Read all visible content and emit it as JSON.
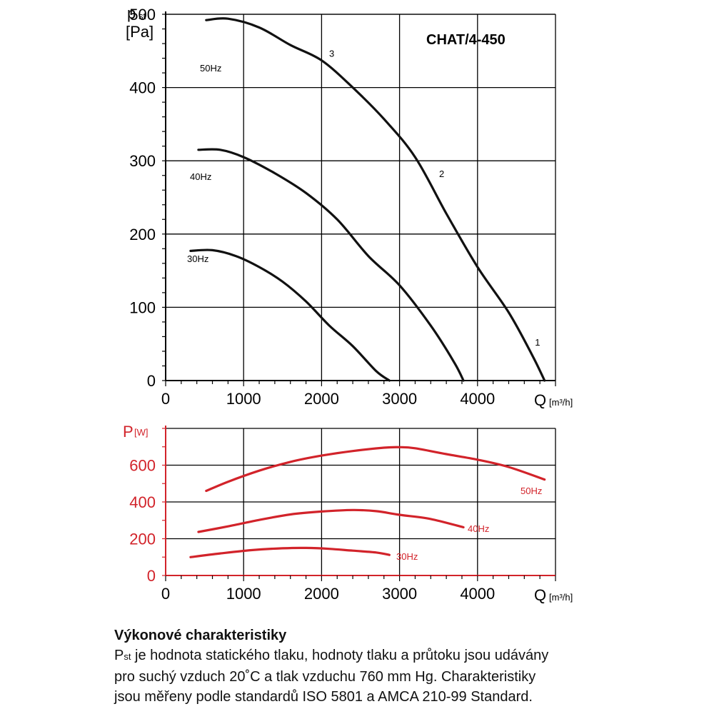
{
  "chart_data": [
    {
      "type": "line",
      "title": "CHAT/4-450",
      "ylabel_symbol": "p",
      "ylabel_sub": "st",
      "yunit": "[Pa]",
      "xlabel": "Q",
      "xunit": "[m³/h]",
      "xlim": [
        0,
        5000
      ],
      "ylim": [
        0,
        500
      ],
      "xticks": [
        0,
        1000,
        2000,
        3000,
        4000
      ],
      "yticks": [
        0,
        100,
        200,
        300,
        400,
        500
      ],
      "grid": true,
      "series": [
        {
          "name": "50Hz",
          "x": [
            520,
            800,
            1200,
            1600,
            2000,
            2400,
            2800,
            3200,
            3600,
            4000,
            4400,
            4700,
            4860
          ],
          "y": [
            492,
            494,
            482,
            458,
            437,
            400,
            357,
            305,
            228,
            155,
            93,
            35,
            0
          ]
        },
        {
          "name": "40Hz",
          "x": [
            420,
            700,
            1000,
            1400,
            1800,
            2200,
            2600,
            3000,
            3400,
            3700,
            3820
          ],
          "y": [
            315,
            315,
            305,
            283,
            256,
            220,
            170,
            130,
            75,
            25,
            0
          ]
        },
        {
          "name": "30Hz",
          "x": [
            320,
            600,
            900,
            1200,
            1500,
            1800,
            2100,
            2400,
            2700,
            2870
          ],
          "y": [
            177,
            178,
            170,
            155,
            135,
            108,
            75,
            47,
            13,
            0
          ]
        }
      ],
      "point_labels": [
        {
          "text": "3",
          "x": 2130,
          "y": 442
        },
        {
          "text": "2",
          "x": 3540,
          "y": 278
        },
        {
          "text": "1",
          "x": 4770,
          "y": 48
        }
      ]
    },
    {
      "type": "line",
      "ylabel_symbol": "P",
      "yunit": "[W]",
      "xlabel": "Q",
      "xunit": "[m³/h]",
      "xlim": [
        0,
        5000
      ],
      "ylim": [
        0,
        800
      ],
      "xticks": [
        0,
        1000,
        2000,
        3000,
        4000
      ],
      "yticks": [
        0,
        200,
        400,
        600
      ],
      "grid": true,
      "color": "#d2232a",
      "series": [
        {
          "name": "50Hz",
          "x": [
            520,
            800,
            1200,
            1600,
            2000,
            2400,
            2800,
            3000,
            3200,
            3600,
            4000,
            4400,
            4860
          ],
          "y": [
            460,
            510,
            570,
            618,
            652,
            677,
            695,
            698,
            692,
            660,
            630,
            590,
            522
          ]
        },
        {
          "name": "40Hz",
          "x": [
            420,
            800,
            1200,
            1600,
            2000,
            2400,
            2700,
            3000,
            3400,
            3820
          ],
          "y": [
            237,
            267,
            302,
            332,
            348,
            356,
            350,
            330,
            307,
            262
          ]
        },
        {
          "name": "30Hz",
          "x": [
            320,
            700,
            1100,
            1500,
            1800,
            2100,
            2400,
            2700,
            2870
          ],
          "y": [
            100,
            120,
            138,
            148,
            150,
            145,
            135,
            125,
            112
          ]
        }
      ]
    }
  ],
  "caption": {
    "heading": "Výkonové charakteristiky",
    "symbol": "P",
    "symbol_sub": "st",
    "line1_rest": " je hodnota statického tlaku, hodnoty tlaku a průtoku jsou udávány",
    "line2": "pro suchý vzduch 20˚C a tlak vzduchu 760 mm Hg. Charakteristiky",
    "line3": "jsou měřeny podle standardů ISO 5801 a AMCA 210-99 Standard."
  }
}
